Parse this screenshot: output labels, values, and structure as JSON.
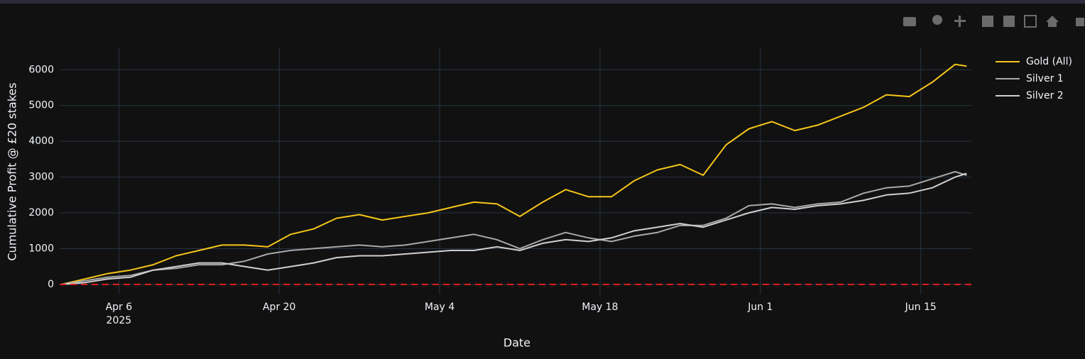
{
  "chart_data": {
    "type": "line",
    "x_title": "Date",
    "y_title": "Cumulative Profit @ £20 stakes",
    "x": [
      "2025-04-01",
      "2025-04-03",
      "2025-04-05",
      "2025-04-07",
      "2025-04-09",
      "2025-04-11",
      "2025-04-13",
      "2025-04-15",
      "2025-04-17",
      "2025-04-19",
      "2025-04-21",
      "2025-04-23",
      "2025-04-25",
      "2025-04-27",
      "2025-04-29",
      "2025-05-01",
      "2025-05-03",
      "2025-05-05",
      "2025-05-07",
      "2025-05-09",
      "2025-05-11",
      "2025-05-13",
      "2025-05-15",
      "2025-05-17",
      "2025-05-19",
      "2025-05-21",
      "2025-05-23",
      "2025-05-25",
      "2025-05-27",
      "2025-05-29",
      "2025-05-31",
      "2025-06-02",
      "2025-06-04",
      "2025-06-06",
      "2025-06-08",
      "2025-06-10",
      "2025-06-12",
      "2025-06-14",
      "2025-06-16",
      "2025-06-18",
      "2025-06-19"
    ],
    "series": [
      {
        "name": "Gold (All)",
        "color": "#f5c518",
        "values": [
          0,
          150,
          300,
          400,
          550,
          800,
          950,
          1100,
          1100,
          1050,
          1400,
          1550,
          1850,
          1950,
          1800,
          1900,
          2000,
          2150,
          2300,
          2250,
          1900,
          2300,
          2650,
          2450,
          2450,
          2900,
          3200,
          3350,
          3050,
          3900,
          4350,
          4550,
          4300,
          4450,
          4700,
          4950,
          5300,
          5250,
          5650,
          6150,
          6100
        ]
      },
      {
        "name": "Silver 1",
        "color": "#a9a9a9",
        "values": [
          0,
          100,
          200,
          250,
          400,
          450,
          550,
          550,
          650,
          850,
          950,
          1000,
          1050,
          1100,
          1050,
          1100,
          1200,
          1300,
          1400,
          1250,
          1000,
          1250,
          1450,
          1300,
          1200,
          1350,
          1450,
          1650,
          1650,
          1850,
          2200,
          2250,
          2150,
          2250,
          2300,
          2550,
          2700,
          2750,
          2950,
          3150,
          3050
        ]
      },
      {
        "name": "Silver 2",
        "color": "#cfcfcf",
        "values": [
          0,
          50,
          150,
          200,
          400,
          500,
          600,
          600,
          500,
          400,
          500,
          600,
          750,
          800,
          800,
          850,
          900,
          950,
          950,
          1050,
          950,
          1150,
          1250,
          1200,
          1300,
          1500,
          1600,
          1700,
          1600,
          1800,
          2000,
          2150,
          2100,
          2200,
          2250,
          2350,
          2500,
          2550,
          2700,
          3000,
          3100
        ]
      }
    ],
    "hline": {
      "value": 0,
      "color": "#e01e1e"
    },
    "xlim": [
      "2025-03-31T20:00",
      "2025-06-19T10:00"
    ],
    "xticks": [
      {
        "value": "2025-04-06",
        "label": "Apr 6"
      },
      {
        "value": "2025-04-20",
        "label": "Apr 20"
      },
      {
        "value": "2025-05-04",
        "label": "May 4"
      },
      {
        "value": "2025-05-18",
        "label": "May 18"
      },
      {
        "value": "2025-06-01",
        "label": "Jun 1"
      },
      {
        "value": "2025-06-15",
        "label": "Jun 15"
      }
    ],
    "xtick_year": "2025",
    "ylim": [
      -280,
      6600
    ],
    "yticks": [
      0,
      1000,
      2000,
      3000,
      4000,
      5000,
      6000
    ],
    "grid": true
  }
}
